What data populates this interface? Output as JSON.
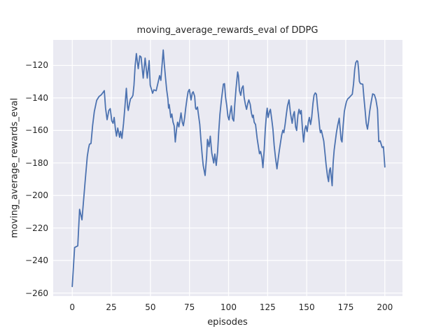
{
  "chart_data": {
    "type": "line",
    "title": "moving_average_rewards_eval of DDPG",
    "xlabel": "episodes",
    "ylabel": "moving_average_rewards_eval",
    "x_tick_values": [
      0,
      25,
      50,
      75,
      100,
      125,
      150,
      175,
      200
    ],
    "x_tick_labels": [
      "0",
      "25",
      "50",
      "75",
      "100",
      "125",
      "150",
      "175",
      "200"
    ],
    "y_tick_values": [
      -120,
      -140,
      -160,
      -180,
      -200,
      -220,
      -240,
      -260
    ],
    "y_tick_labels": [
      "−120",
      "−140",
      "−160",
      "−180",
      "−200",
      "−220",
      "−240",
      "−260"
    ],
    "xlim": [
      -12.2,
      211.3
    ],
    "ylim": [
      -261.9,
      -104.3
    ],
    "grid": true,
    "legend": "none",
    "colors": {
      "line": "#4c72b0",
      "plot_background": "#eaeaf2",
      "grid": "#ffffff",
      "text": "#262626",
      "figure_background": "#ffffff"
    },
    "series": [
      {
        "name": "moving_average_rewards_eval",
        "points": [
          [
            0,
            -256
          ],
          [
            1.5,
            -232
          ],
          [
            3.5,
            -231
          ],
          [
            4.7,
            -208.5
          ],
          [
            6.2,
            -215
          ],
          [
            8.2,
            -192
          ],
          [
            9.6,
            -176
          ],
          [
            10.4,
            -171
          ],
          [
            11,
            -168.5
          ],
          [
            12,
            -168
          ],
          [
            13,
            -157
          ],
          [
            14.1,
            -148.5
          ],
          [
            15.6,
            -141.5
          ],
          [
            17.1,
            -139.2
          ],
          [
            18.6,
            -138
          ],
          [
            20.5,
            -135.5
          ],
          [
            21.3,
            -146.3
          ],
          [
            22.3,
            -153.4
          ],
          [
            23.4,
            -147.7
          ],
          [
            24.3,
            -146.6
          ],
          [
            25.3,
            -154.1
          ],
          [
            26.1,
            -155.6
          ],
          [
            26.8,
            -152
          ],
          [
            27.6,
            -159.2
          ],
          [
            28.3,
            -163.5
          ],
          [
            29.1,
            -158.5
          ],
          [
            30.3,
            -164.2
          ],
          [
            30.9,
            -160.5
          ],
          [
            31.8,
            -164.9
          ],
          [
            32.8,
            -155.6
          ],
          [
            33.6,
            -146.3
          ],
          [
            34.6,
            -134.1
          ],
          [
            35.4,
            -145.6
          ],
          [
            35.8,
            -147.7
          ],
          [
            36.6,
            -143.4
          ],
          [
            37.3,
            -140.5
          ],
          [
            38.1,
            -139.8
          ],
          [
            38.8,
            -138.4
          ],
          [
            39.5,
            -132.1
          ],
          [
            40.2,
            -120.6
          ],
          [
            41,
            -112.7
          ],
          [
            42.2,
            -122
          ],
          [
            43.2,
            -114.1
          ],
          [
            44,
            -114.8
          ],
          [
            45.4,
            -127.8
          ],
          [
            46.6,
            -115.5
          ],
          [
            48,
            -127.8
          ],
          [
            49.2,
            -117
          ],
          [
            49.9,
            -132.1
          ],
          [
            51.4,
            -137.1
          ],
          [
            52.2,
            -135
          ],
          [
            53.7,
            -135.6
          ],
          [
            55.2,
            -129.2
          ],
          [
            55.9,
            -126.3
          ],
          [
            56.7,
            -129.2
          ],
          [
            58.2,
            -110.5
          ],
          [
            58.9,
            -119.1
          ],
          [
            59.7,
            -127.8
          ],
          [
            60.4,
            -135
          ],
          [
            61.2,
            -140.7
          ],
          [
            61.6,
            -146.3
          ],
          [
            62,
            -144.1
          ],
          [
            62.6,
            -148.4
          ],
          [
            63,
            -152
          ],
          [
            63.7,
            -149.9
          ],
          [
            64.5,
            -154.9
          ],
          [
            65.2,
            -157.1
          ],
          [
            65.9,
            -167.1
          ],
          [
            66.7,
            -159.2
          ],
          [
            67.4,
            -154.9
          ],
          [
            68.2,
            -157.8
          ],
          [
            68.9,
            -153.5
          ],
          [
            69.6,
            -149.2
          ],
          [
            70.4,
            -154.9
          ],
          [
            71.1,
            -157.1
          ],
          [
            71.9,
            -152
          ],
          [
            72.6,
            -146.3
          ],
          [
            73.4,
            -140.6
          ],
          [
            74.1,
            -136.2
          ],
          [
            74.9,
            -134.8
          ],
          [
            76,
            -141.3
          ],
          [
            76.8,
            -137
          ],
          [
            77.4,
            -136.2
          ],
          [
            78.3,
            -139
          ],
          [
            78.9,
            -146.3
          ],
          [
            79.3,
            -147
          ],
          [
            80.1,
            -145.6
          ],
          [
            80.8,
            -150.6
          ],
          [
            81.6,
            -156.3
          ],
          [
            82.3,
            -165.7
          ],
          [
            83.1,
            -175
          ],
          [
            83.8,
            -181.5
          ],
          [
            85,
            -187.7
          ],
          [
            86,
            -176
          ],
          [
            86.5,
            -165.5
          ],
          [
            87.5,
            -170
          ],
          [
            88.3,
            -163.5
          ],
          [
            89.3,
            -174
          ],
          [
            90.5,
            -180
          ],
          [
            91.2,
            -174.5
          ],
          [
            92.1,
            -181.5
          ],
          [
            93,
            -173
          ],
          [
            93.7,
            -161.4
          ],
          [
            94.5,
            -150
          ],
          [
            95.5,
            -140.5
          ],
          [
            96.7,
            -131.5
          ],
          [
            97.4,
            -131.2
          ],
          [
            98.1,
            -139.8
          ],
          [
            98.9,
            -144.9
          ],
          [
            99.6,
            -151.3
          ],
          [
            100.3,
            -153.5
          ],
          [
            101.1,
            -148.4
          ],
          [
            101.8,
            -144.9
          ],
          [
            102.5,
            -152.7
          ],
          [
            103.3,
            -154.2
          ],
          [
            104,
            -144.1
          ],
          [
            104.8,
            -134.1
          ],
          [
            105.8,
            -124
          ],
          [
            106.3,
            -126.2
          ],
          [
            107,
            -135.5
          ],
          [
            107.8,
            -138.4
          ],
          [
            108.5,
            -134.1
          ],
          [
            109.3,
            -132.6
          ],
          [
            110,
            -139.8
          ],
          [
            110.8,
            -144.1
          ],
          [
            111.5,
            -147
          ],
          [
            112.3,
            -143.4
          ],
          [
            113,
            -141.2
          ],
          [
            113.9,
            -144.1
          ],
          [
            114.6,
            -149.2
          ],
          [
            115.3,
            -152
          ],
          [
            115.8,
            -150.6
          ],
          [
            116.4,
            -154.9
          ],
          [
            117.3,
            -156.4
          ],
          [
            118.3,
            -165
          ],
          [
            119.8,
            -174.3
          ],
          [
            120.5,
            -172.9
          ],
          [
            121.3,
            -176.5
          ],
          [
            122,
            -182.9
          ],
          [
            122.8,
            -172.1
          ],
          [
            123.5,
            -159.2
          ],
          [
            124.3,
            -149.2
          ],
          [
            124.7,
            -146.3
          ],
          [
            125.3,
            -152
          ],
          [
            126.2,
            -148.4
          ],
          [
            126.8,
            -147
          ],
          [
            127.7,
            -153.5
          ],
          [
            128.4,
            -159.2
          ],
          [
            129.2,
            -169.3
          ],
          [
            130,
            -176.5
          ],
          [
            131,
            -183.6
          ],
          [
            131.7,
            -177.9
          ],
          [
            132.5,
            -172.1
          ],
          [
            133.2,
            -167.8
          ],
          [
            134,
            -162.8
          ],
          [
            134.7,
            -159.9
          ],
          [
            135.4,
            -161.4
          ],
          [
            136.2,
            -156.3
          ],
          [
            136.9,
            -150.6
          ],
          [
            137.7,
            -144.9
          ],
          [
            138.7,
            -141.2
          ],
          [
            139.6,
            -149.2
          ],
          [
            140.7,
            -155.6
          ],
          [
            141.4,
            -150.6
          ],
          [
            142.1,
            -148.4
          ],
          [
            142.9,
            -157.8
          ],
          [
            143.6,
            -160
          ],
          [
            144.4,
            -150.6
          ],
          [
            145.1,
            -147
          ],
          [
            145.8,
            -149.8
          ],
          [
            146.5,
            -147.7
          ],
          [
            147.3,
            -159.2
          ],
          [
            148,
            -167.1
          ],
          [
            148.8,
            -159.2
          ],
          [
            149.5,
            -157.1
          ],
          [
            150.3,
            -160.7
          ],
          [
            151,
            -154.9
          ],
          [
            151.7,
            -152
          ],
          [
            152.5,
            -156.3
          ],
          [
            153.2,
            -152
          ],
          [
            154,
            -143.4
          ],
          [
            154.7,
            -138.4
          ],
          [
            155.5,
            -136.9
          ],
          [
            156.2,
            -137.7
          ],
          [
            156.9,
            -144.9
          ],
          [
            157.7,
            -152
          ],
          [
            158.4,
            -159.2
          ],
          [
            158.8,
            -161.4
          ],
          [
            159.4,
            -159.9
          ],
          [
            160.9,
            -166.5
          ],
          [
            161.8,
            -175
          ],
          [
            162.4,
            -180.8
          ],
          [
            163.3,
            -188
          ],
          [
            164,
            -191.5
          ],
          [
            164.6,
            -184.5
          ],
          [
            165.1,
            -183
          ],
          [
            166.3,
            -194
          ],
          [
            166.9,
            -180
          ],
          [
            167.6,
            -172
          ],
          [
            168.4,
            -166
          ],
          [
            169,
            -161.4
          ],
          [
            169.8,
            -157.1
          ],
          [
            170.8,
            -152.5
          ],
          [
            172,
            -165.7
          ],
          [
            172.6,
            -167.1
          ],
          [
            173.3,
            -157.1
          ],
          [
            174.1,
            -148.4
          ],
          [
            174.8,
            -144.9
          ],
          [
            175.5,
            -142
          ],
          [
            176.3,
            -140.5
          ],
          [
            177.2,
            -139.8
          ],
          [
            178.5,
            -138.4
          ],
          [
            179.2,
            -137.7
          ],
          [
            180,
            -131.2
          ],
          [
            180.7,
            -122.6
          ],
          [
            181.4,
            -118.3
          ],
          [
            182.2,
            -117.1
          ],
          [
            182.7,
            -117.6
          ],
          [
            183.2,
            -122.6
          ],
          [
            183.7,
            -129.8
          ],
          [
            184.4,
            -131.2
          ],
          [
            185.9,
            -131.6
          ],
          [
            186.6,
            -139.8
          ],
          [
            187.4,
            -147.7
          ],
          [
            188.1,
            -155.6
          ],
          [
            188.9,
            -159.2
          ],
          [
            189.6,
            -154.2
          ],
          [
            190.3,
            -148.4
          ],
          [
            191.1,
            -143.4
          ],
          [
            192.2,
            -137.5
          ],
          [
            193.3,
            -138
          ],
          [
            194.3,
            -141
          ],
          [
            195.3,
            -147
          ],
          [
            196.1,
            -166.9
          ],
          [
            197,
            -166.4
          ],
          [
            198.3,
            -170.5
          ],
          [
            199.1,
            -170
          ],
          [
            200,
            -182.5
          ]
        ]
      }
    ]
  }
}
